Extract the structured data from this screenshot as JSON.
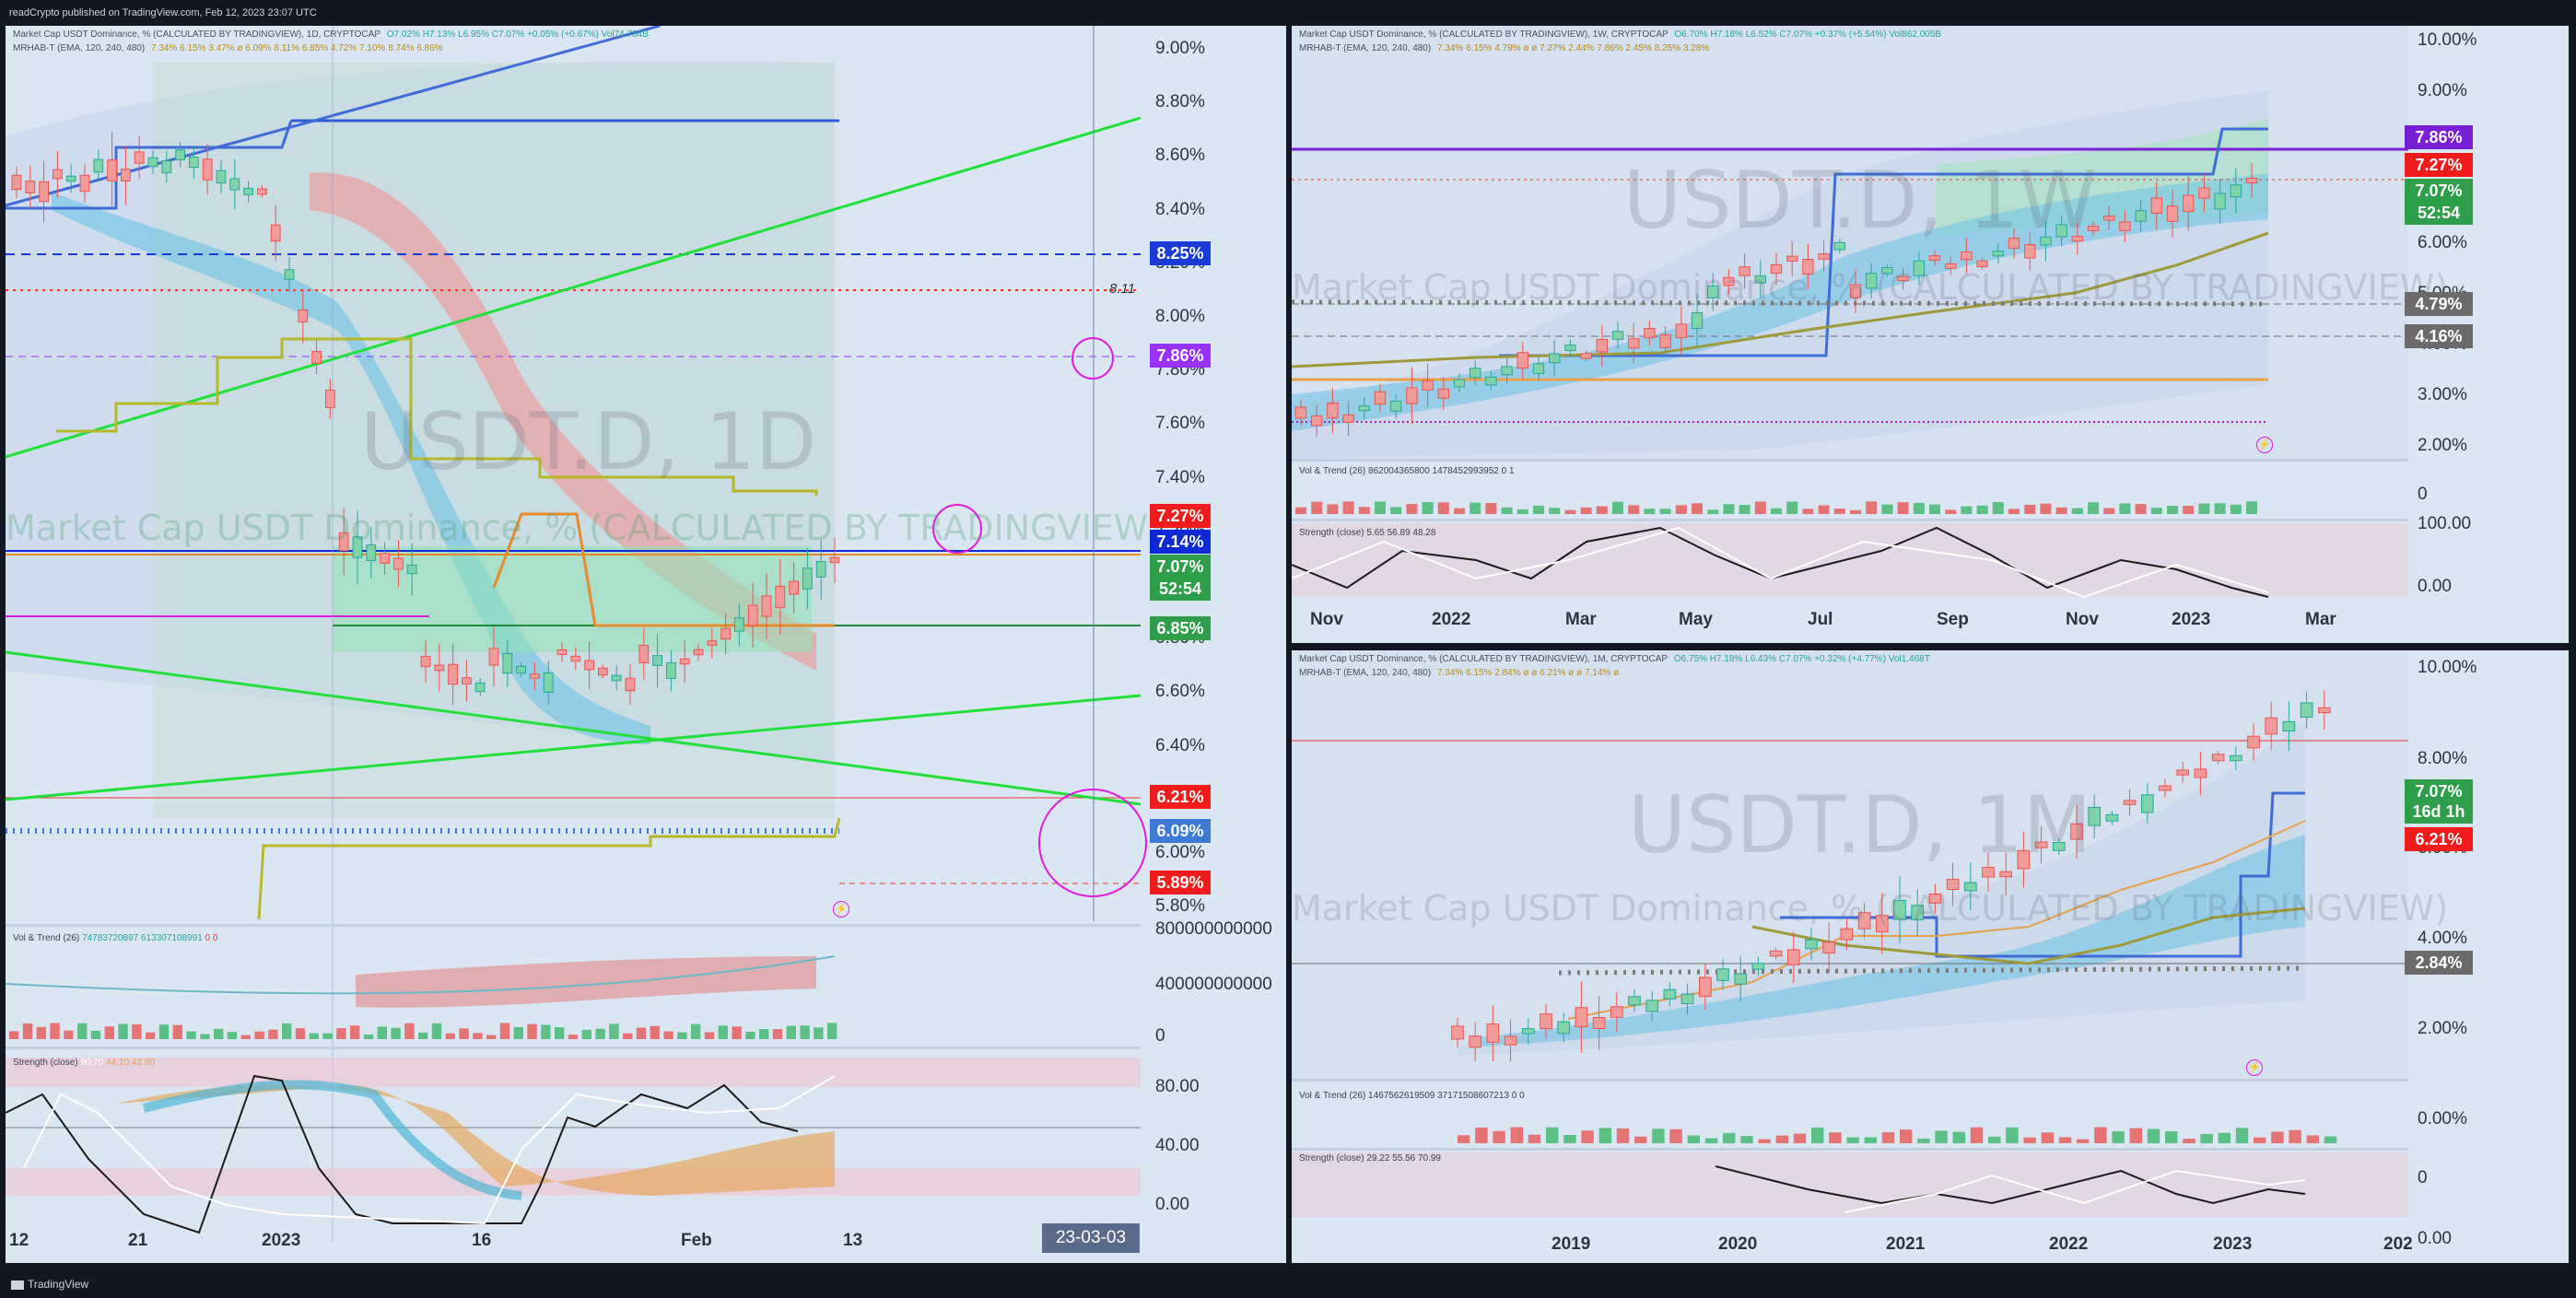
{
  "header": {
    "text": "readCrypto published on TradingView.com, Feb 12, 2023 23:07 UTC"
  },
  "footer": {
    "logo_text": "TradingView"
  },
  "colors": {
    "background": "#131722",
    "panel": "#dbe6f3",
    "up": "#26a69a",
    "down": "#ef5350",
    "green_line": "#22e03a",
    "blue_line": "#2962ff"
  },
  "left_panel": {
    "legend": {
      "title": "Market Cap USDT Dominance, % (CALCULATED BY TRADINGVIEW), 1D, CRYPTOCAP",
      "ohlc": "O7.02% H7.13% L6.95% C7.07% +0.05% (+0.67%) Vol74.784B",
      "indicator": "MRHAB-T (EMA, 120, 240, 480)",
      "indicator_values": "7.34% 6.15% 3.47% ø 6.09% 8.11% 6.85% 4.72% 7.10% 8.74% 6.86%"
    },
    "watermark_symbol": "USDT.D, 1D",
    "watermark_name": "Market Cap USDT Dominance, % (CALCULATED BY TRADINGVIEW)",
    "price_ticks": [
      "9.00%",
      "8.80%",
      "8.60%",
      "8.40%",
      "8.20%",
      "8.00%",
      "7.80%",
      "7.60%",
      "7.40%",
      "7.20%",
      "7.00%",
      "6.80%",
      "6.60%",
      "6.40%",
      "6.20%",
      "6.00%",
      "5.80%"
    ],
    "price_labels": [
      {
        "text": "8.25%",
        "color": "#1a3bd6"
      },
      {
        "text": "7.86%",
        "color": "#9b30ff"
      },
      {
        "text": "7.27%",
        "color": "#f01b1b"
      },
      {
        "text": "7.14%",
        "color": "#0d2ad6"
      },
      {
        "text": "7.07%",
        "color": "#2e9e4a"
      },
      {
        "text": "52:54",
        "color": "#2e9e4a"
      },
      {
        "text": "6.85%",
        "color": "#2e9e4a"
      },
      {
        "text": "6.21%",
        "color": "#f01b1b"
      },
      {
        "text": "6.09%",
        "color": "#3c7ad6"
      },
      {
        "text": "5.89%",
        "color": "#f01b1b"
      }
    ],
    "annotation": "8.11",
    "vol_axis": [
      "800000000000",
      "400000000000",
      "0"
    ],
    "vol_legend": {
      "label": "Vol & Trend (26)",
      "v1": "74783720897",
      "v2": "613307108991",
      "v3": "0",
      "v4": "0"
    },
    "strength_axis": [
      "80.00",
      "40.00",
      "0.00"
    ],
    "strength_legend": {
      "label": "Strength (close)",
      "v1": "90.70",
      "v2": "44.10",
      "v3": "42.80"
    },
    "x_ticks": [
      "12",
      "21",
      "2023",
      "16",
      "Feb",
      "13"
    ],
    "date_badge": "23-03-03"
  },
  "top_right_panel": {
    "legend": {
      "title": "Market Cap USDT Dominance, % (CALCULATED BY TRADINGVIEW), 1W, CRYPTOCAP",
      "ohlc": "O6.70% H7.18% L6.52% C7.07% +0.37% (+5.54%) Vol862.005B",
      "indicator": "MRHAB-T (EMA, 120, 240, 480)",
      "indicator_values": "7.34% 6.15% 4.79% ø ø 7.27% 2.44% 7.86% 2.45% 8.25% 3.28%"
    },
    "watermark_symbol": "USDT.D, 1W",
    "watermark_name": "Market Cap USDT Dominance, % (CALCULATED BY TRADINGVIEW)",
    "price_ticks": [
      "10.00%",
      "9.00%",
      "8.00%",
      "7.00%",
      "6.00%",
      "5.00%",
      "4.00%",
      "3.00%",
      "2.00%",
      "100.00",
      "0.00",
      "0"
    ],
    "price_labels": [
      {
        "text": "7.86%",
        "color": "#7b1fd6"
      },
      {
        "text": "7.27%",
        "color": "#f01b1b"
      },
      {
        "text": "7.07%",
        "color": "#2e9e4a"
      },
      {
        "text": "52:54",
        "color": "#2e9e4a"
      },
      {
        "text": "4.79%",
        "color": "#6b6b6b"
      },
      {
        "text": "4.16%",
        "color": "#6b6b6b"
      }
    ],
    "vol_legend": "Vol & Trend (26) 862004365800 1478452993952 0 1",
    "strength_legend": "Strength (close) 5.65 56.89 48.28",
    "x_ticks": [
      "Nov",
      "2022",
      "Mar",
      "May",
      "Jul",
      "Sep",
      "Nov",
      "2023",
      "Mar"
    ]
  },
  "bottom_right_panel": {
    "legend": {
      "title": "Market Cap USDT Dominance, % (CALCULATED BY TRADINGVIEW), 1M, CRYPTOCAP",
      "ohlc": "O6.75% H7.18% L6.43% C7.07% +0.32% (+4.77%) Vol1.468T",
      "indicator": "MRHAB-T (EMA, 120, 240, 480)",
      "indicator_values": "7.34% 6.15% 2.84% ø ø 6.21% ø ø 7.14% ø"
    },
    "watermark_symbol": "USDT.D, 1M",
    "watermark_name": "Market Cap USDT Dominance, % (CALCULATED BY TRADINGVIEW)",
    "price_ticks": [
      "10.00%",
      "8.00%",
      "6.00%",
      "4.00%",
      "2.00%",
      "0.00%",
      "0",
      "0.00"
    ],
    "price_labels": [
      {
        "text": "7.07%",
        "color": "#2e9e4a"
      },
      {
        "text": "16d 1h",
        "color": "#2e9e4a"
      },
      {
        "text": "6.21%",
        "color": "#f01b1b"
      },
      {
        "text": "2.84%",
        "color": "#6b6b6b"
      }
    ],
    "vol_legend": "Vol & Trend (26) 1467562619509 37171508607213 0 0",
    "strength_legend": "Strength (close) 29.22 55.56 70.99",
    "x_ticks": [
      "2019",
      "2020",
      "2021",
      "2022",
      "2023",
      "202"
    ]
  }
}
